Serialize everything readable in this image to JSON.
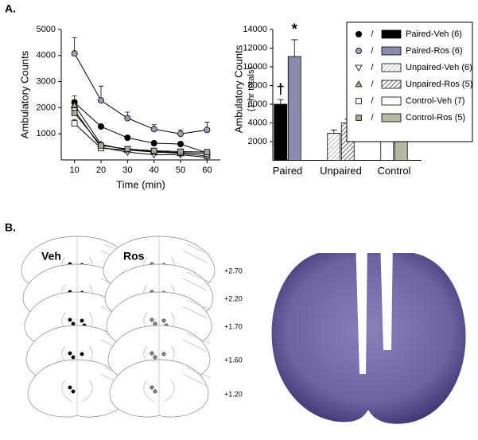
{
  "figure": {
    "panel_a": "A.",
    "panel_b": "B.",
    "atlas_labels": [
      "Veh",
      "Ros"
    ],
    "levels": [
      "+2.70",
      "+2.20",
      "+1.70",
      "+1.60",
      "+1.20"
    ]
  },
  "chart_data": [
    {
      "type": "line",
      "xlabel": "Time (min)",
      "ylabel": "Ambulatory Counts",
      "x": [
        10,
        20,
        30,
        40,
        50,
        60
      ],
      "xlim": [
        5,
        65
      ],
      "xticks": [
        10,
        20,
        30,
        40,
        50,
        60
      ],
      "ylim": [
        0,
        5000
      ],
      "yticks": [
        1000,
        2000,
        3000,
        4000,
        5000
      ],
      "series": [
        {
          "name": "Paired-Veh (6)",
          "color": "#000000",
          "marker": "circle",
          "values": [
            2200,
            1280,
            850,
            640,
            610,
            270
          ],
          "errors": [
            250,
            80,
            60,
            50,
            50,
            60
          ]
        },
        {
          "name": "Paired-Ros (6)",
          "color": "#9d9db5",
          "marker": "circle",
          "values": [
            4080,
            2280,
            1600,
            1180,
            1000,
            1150
          ],
          "errors": [
            600,
            550,
            230,
            170,
            150,
            300
          ]
        },
        {
          "name": "Unpaired-Veh (6)",
          "color": "#ffffff",
          "marker": "triangle-down",
          "values": [
            1900,
            480,
            300,
            200,
            200,
            100
          ],
          "errors": [
            200,
            60,
            50,
            40,
            40,
            40
          ]
        },
        {
          "name": "Unpaired-Ros (5)",
          "color": "#a0a890",
          "marker": "triangle-up",
          "values": [
            2100,
            600,
            380,
            300,
            250,
            150
          ],
          "errors": [
            200,
            60,
            50,
            40,
            40,
            40
          ]
        },
        {
          "name": "Control-Veh (7)",
          "color": "#ffffff",
          "marker": "square",
          "values": [
            1400,
            450,
            380,
            330,
            280,
            250
          ],
          "errors": [
            150,
            50,
            40,
            40,
            40,
            40
          ]
        },
        {
          "name": "Control-Ros (5)",
          "color": "#a8a898",
          "marker": "square",
          "values": [
            1800,
            550,
            420,
            350,
            320,
            300
          ],
          "errors": [
            200,
            60,
            40,
            40,
            40,
            40
          ]
        }
      ]
    },
    {
      "type": "bar",
      "ylabel": "Ambulatory Counts",
      "ylabel2": "(1-hr totals)",
      "categories": [
        "Paired",
        "Unpaired",
        "Control"
      ],
      "ylim": [
        0,
        14000
      ],
      "yticks": [
        2000,
        4000,
        6000,
        8000,
        10000,
        12000,
        14000
      ],
      "legend_separator": "/",
      "annotations": [
        "†",
        "*"
      ],
      "series": [
        {
          "name": "Paired-Veh (6)",
          "color": "#000000",
          "hatch": false,
          "values": [
            6000,
            null,
            null
          ],
          "errors": [
            500,
            null,
            null
          ]
        },
        {
          "name": "Paired-Ros (6)",
          "color": "#8a8aad",
          "hatch": false,
          "values": [
            11100,
            null,
            null
          ],
          "errors": [
            1800,
            null,
            null
          ]
        },
        {
          "name": "Unpaired-Veh (6)",
          "color": "#bbbbbb",
          "hatch": true,
          "values": [
            null,
            2900,
            null
          ],
          "errors": [
            null,
            350,
            null
          ]
        },
        {
          "name": "Unpaired-Ros (5)",
          "color": "#666666",
          "hatch": true,
          "values": [
            null,
            4000,
            null
          ],
          "errors": [
            null,
            400,
            null
          ]
        },
        {
          "name": "Control-Veh (7)",
          "color": "#ffffff",
          "hatch": false,
          "values": [
            null,
            null,
            3150
          ],
          "errors": [
            null,
            null,
            500
          ]
        },
        {
          "name": "Control-Ros (5)",
          "color": "#b5b9a5",
          "hatch": false,
          "values": [
            null,
            null,
            3550
          ],
          "errors": [
            null,
            null,
            550
          ]
        }
      ]
    }
  ]
}
